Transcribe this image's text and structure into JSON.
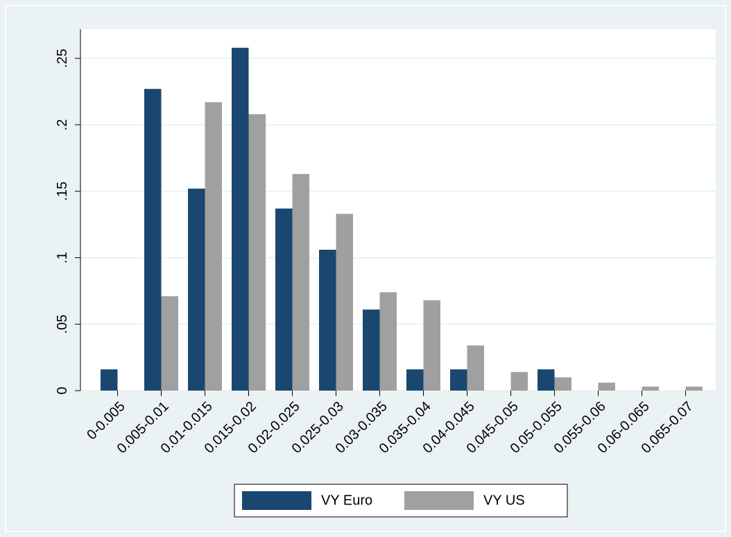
{
  "chart_data": {
    "type": "bar",
    "categories": [
      "0-0.005",
      "0.005-0.01",
      "0.01-0.015",
      "0.015-0.02",
      "0.02-0.025",
      "0.025-0.03",
      "0.03-0.035",
      "0.035-0.04",
      "0.04-0.045",
      "0.045-0.05",
      "0.05-0.055",
      "0.055-0.06",
      "0.06-0.065",
      "0.065-0.07"
    ],
    "series": [
      {
        "name": "VY Euro",
        "color": "#1a476f",
        "values": [
          0.016,
          0.227,
          0.152,
          0.258,
          0.137,
          0.106,
          0.061,
          0.016,
          0.016,
          0,
          0.016,
          0,
          0,
          0
        ]
      },
      {
        "name": "VY US",
        "color": "#a0a0a0",
        "values": [
          0,
          0.071,
          0.217,
          0.208,
          0.163,
          0.133,
          0.074,
          0.068,
          0.034,
          0.014,
          0.01,
          0.006,
          0.003,
          0.003
        ]
      }
    ],
    "ylim": [
      0,
      0.272
    ],
    "yticks": [
      0,
      {
        "value": 0.05,
        "label": ".05"
      },
      {
        "value": 0.1,
        "label": ".1"
      },
      {
        "value": 0.15,
        "label": ".15"
      },
      {
        "value": 0.2,
        "label": ".2"
      },
      {
        "value": 0.25,
        "label": ".25"
      }
    ],
    "grid": true,
    "legend": "bottom"
  }
}
